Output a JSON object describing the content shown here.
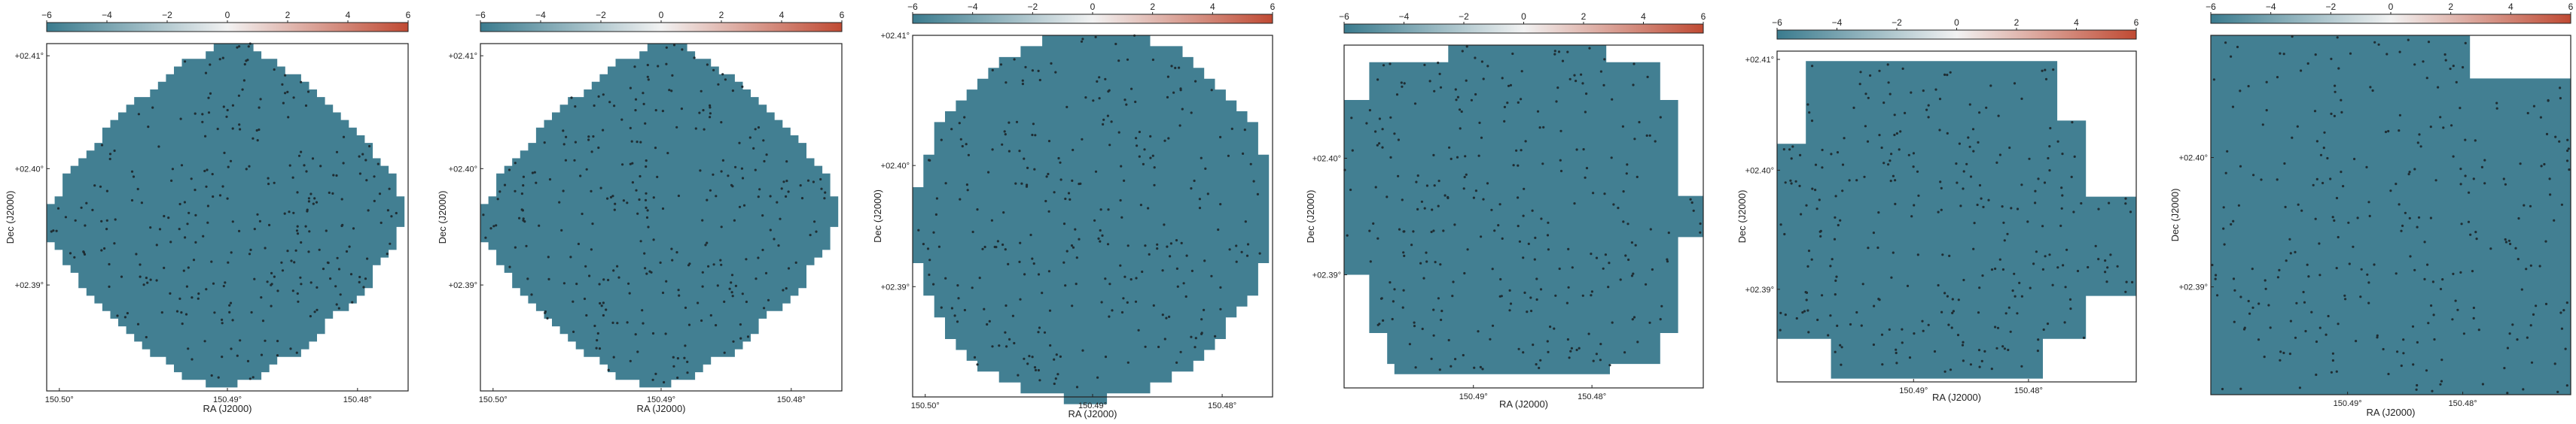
{
  "colors": {
    "cmap_low": "#3a7b8e",
    "cmap_mid": "#f2f2f2",
    "cmap_high": "#c04a33",
    "map_fill": "#427f92",
    "point": "#1f2d33",
    "frame": "#222222"
  },
  "colorbar": {
    "ticks": [
      "−6",
      "−4",
      "−2",
      "0",
      "2",
      "4",
      "6"
    ],
    "range": [
      -6,
      6
    ]
  },
  "chart_data": [
    {
      "type": "heatmap",
      "xlabel": "RA (J2000)",
      "ylabel": "Dec (J2000)",
      "xticks": [
        "150.50°",
        "150.49°",
        "150.48°"
      ],
      "yticks": [
        "+02.41°",
        "+02.40°",
        "+02.39°"
      ],
      "shape": "octagon",
      "fill_level": -6,
      "n_points": 300,
      "grid": false,
      "colorbar": "top"
    },
    {
      "type": "heatmap",
      "xlabel": "RA (J2000)",
      "ylabel": "Dec (J2000)",
      "xticks": [
        "150.50°",
        "150.49°",
        "150.48°"
      ],
      "yticks": [
        "+02.41°",
        "+02.40°",
        "+02.39°"
      ],
      "shape": "octagon",
      "fill_level": -6,
      "n_points": 300,
      "grid": false,
      "colorbar": "top"
    },
    {
      "type": "heatmap",
      "xlabel": "RA (J2000)",
      "ylabel": "Dec (J2000)",
      "xticks": [
        "150.50°",
        "150.49°",
        "150.48°"
      ],
      "yticks": [
        "+02.41°",
        "+02.40°",
        "+02.39°"
      ],
      "shape": "circle",
      "fill_level": -6,
      "n_points": 300,
      "grid": false,
      "colorbar": "top"
    },
    {
      "type": "heatmap",
      "xlabel": "RA (J2000)",
      "ylabel": "Dec (J2000)",
      "xticks": [
        "150.49°",
        "150.48°"
      ],
      "yticks": [
        "+02.40°",
        "+02.39°"
      ],
      "shape": "square-cut",
      "fill_level": -6,
      "n_points": 300,
      "grid": false,
      "colorbar": "top"
    },
    {
      "type": "heatmap",
      "xlabel": "RA (J2000)",
      "ylabel": "Dec (J2000)",
      "xticks": [
        "150.49°",
        "150.48°"
      ],
      "yticks": [
        "+02.41°",
        "+02.40°",
        "+02.39°"
      ],
      "shape": "square-cut-wide",
      "fill_level": -6,
      "n_points": 300,
      "grid": false,
      "colorbar": "top"
    },
    {
      "type": "heatmap",
      "xlabel": "RA (J2000)",
      "ylabel": "Dec (J2000)",
      "xticks": [
        "150.49°",
        "150.48°"
      ],
      "yticks": [
        "+02.40°",
        "+02.39°"
      ],
      "shape": "full-notch",
      "fill_level": -6,
      "n_points": 300,
      "grid": false,
      "colorbar": "top"
    }
  ]
}
